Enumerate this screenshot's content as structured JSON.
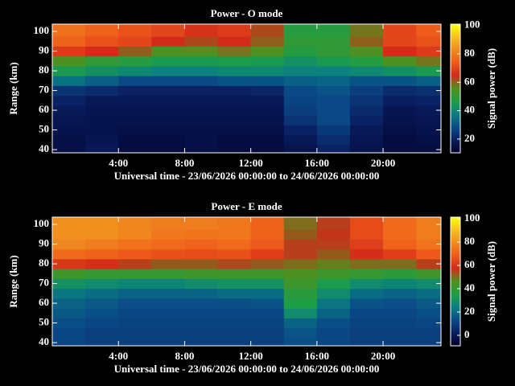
{
  "chart_data": [
    {
      "type": "heatmap",
      "title": "Power - O mode",
      "x_label": "Universal time - 23/06/2026 00:00:00 to 24/06/2026 00:00:00",
      "y_label": "Range (km)",
      "colorbar_label": "Signal power (dB)",
      "x": [
        1,
        3,
        5,
        7,
        9,
        11,
        13,
        15,
        17,
        19,
        21,
        23
      ],
      "y": [
        40,
        45,
        50,
        55,
        60,
        65,
        70,
        75,
        80,
        85,
        90,
        95,
        100,
        105
      ],
      "z": [
        [
          15,
          18,
          14,
          14,
          15,
          14,
          14,
          16,
          20,
          16,
          14,
          14
        ],
        [
          15,
          17,
          14,
          14,
          15,
          14,
          14,
          18,
          22,
          17,
          14,
          15
        ],
        [
          16,
          16,
          15,
          15,
          15,
          15,
          15,
          20,
          25,
          18,
          15,
          16
        ],
        [
          17,
          16,
          16,
          16,
          16,
          16,
          16,
          24,
          28,
          20,
          16,
          17
        ],
        [
          18,
          17,
          17,
          17,
          17,
          17,
          17,
          26,
          28,
          22,
          17,
          18
        ],
        [
          20,
          18,
          18,
          18,
          18,
          18,
          18,
          27,
          28,
          24,
          19,
          20
        ],
        [
          24,
          22,
          20,
          20,
          20,
          20,
          21,
          28,
          30,
          26,
          22,
          23
        ],
        [
          35,
          32,
          28,
          28,
          28,
          30,
          30,
          32,
          33,
          30,
          30,
          32
        ],
        [
          45,
          42,
          40,
          38,
          38,
          40,
          40,
          38,
          38,
          40,
          42,
          45
        ],
        [
          55,
          50,
          48,
          45,
          45,
          46,
          45,
          42,
          45,
          48,
          55,
          58
        ],
        [
          68,
          65,
          60,
          55,
          55,
          58,
          55,
          48,
          50,
          55,
          65,
          68
        ],
        [
          75,
          72,
          70,
          65,
          62,
          65,
          60,
          50,
          50,
          60,
          70,
          72
        ],
        [
          78,
          75,
          72,
          70,
          66,
          68,
          62,
          48,
          48,
          58,
          70,
          74
        ],
        [
          78,
          75,
          72,
          70,
          66,
          68,
          62,
          48,
          48,
          58,
          70,
          74
        ]
      ],
      "xlim": [
        0,
        23.5
      ],
      "ylim": [
        38.4,
        103.7
      ],
      "xticks": [
        {
          "value": 4,
          "label": "4:00"
        },
        {
          "value": 8,
          "label": "8:00"
        },
        {
          "value": 12,
          "label": "12:00"
        },
        {
          "value": 16,
          "label": "16:00"
        },
        {
          "value": 20,
          "label": "20:00"
        }
      ],
      "yticks": [
        40,
        50,
        60,
        70,
        80,
        90,
        100
      ],
      "clim": [
        10.3,
        101
      ],
      "cticks": [
        20,
        40,
        60,
        80,
        100
      ],
      "colormap": [
        "#00002a",
        "#0a1e60",
        "#0a4a88",
        "#0a8080",
        "#1e9e46",
        "#50901e",
        "#d22a1a",
        "#ee5a1a",
        "#f08c1e",
        "#f8c020",
        "#ffff00"
      ]
    },
    {
      "type": "heatmap",
      "title": "Power - E mode",
      "x_label": "Universal time - 23/06/2026 00:00:00 to 24/06/2026 00:00:00",
      "y_label": "Range (km)",
      "colorbar_label": "Signal power (dB)",
      "x": [
        1,
        3,
        5,
        7,
        9,
        11,
        13,
        15,
        17,
        19,
        21,
        23
      ],
      "y": [
        40,
        45,
        50,
        55,
        60,
        65,
        70,
        75,
        80,
        85,
        90,
        95,
        100,
        105
      ],
      "z": [
        [
          12,
          10,
          10,
          10,
          10,
          10,
          10,
          14,
          12,
          10,
          10,
          10
        ],
        [
          12,
          10,
          10,
          10,
          10,
          10,
          10,
          15,
          12,
          10,
          10,
          10
        ],
        [
          14,
          12,
          11,
          11,
          11,
          11,
          11,
          18,
          14,
          11,
          11,
          12
        ],
        [
          16,
          14,
          12,
          12,
          12,
          12,
          12,
          28,
          18,
          12,
          12,
          14
        ],
        [
          18,
          16,
          14,
          14,
          14,
          14,
          15,
          35,
          22,
          15,
          14,
          16
        ],
        [
          22,
          20,
          18,
          18,
          18,
          20,
          20,
          38,
          28,
          20,
          18,
          20
        ],
        [
          30,
          28,
          26,
          26,
          28,
          30,
          30,
          42,
          34,
          28,
          26,
          28
        ],
        [
          42,
          40,
          40,
          40,
          42,
          42,
          42,
          45,
          42,
          40,
          38,
          42
        ],
        [
          60,
          58,
          55,
          52,
          52,
          54,
          52,
          50,
          48,
          50,
          50,
          55
        ],
        [
          72,
          70,
          68,
          66,
          65,
          66,
          62,
          55,
          52,
          58,
          62,
          68
        ],
        [
          78,
          76,
          74,
          72,
          70,
          72,
          68,
          55,
          55,
          62,
          70,
          74
        ],
        [
          80,
          80,
          78,
          75,
          74,
          75,
          70,
          52,
          56,
          65,
          72,
          76
        ],
        [
          80,
          80,
          78,
          76,
          76,
          75,
          70,
          50,
          55,
          65,
          72,
          76
        ],
        [
          80,
          80,
          78,
          76,
          76,
          75,
          70,
          50,
          55,
          65,
          72,
          76
        ]
      ],
      "xlim": [
        0,
        23.5
      ],
      "ylim": [
        38.4,
        103.7
      ],
      "xticks": [
        {
          "value": 4,
          "label": "4:00"
        },
        {
          "value": 8,
          "label": "8:00"
        },
        {
          "value": 12,
          "label": "12:00"
        },
        {
          "value": 16,
          "label": "16:00"
        },
        {
          "value": 20,
          "label": "20:00"
        }
      ],
      "yticks": [
        40,
        50,
        60,
        70,
        80,
        90,
        100
      ],
      "clim": [
        -9,
        101.4
      ],
      "cticks": [
        0,
        20,
        40,
        60,
        80,
        100
      ],
      "colormap": [
        "#00002a",
        "#0a1e60",
        "#0a4a88",
        "#0a8080",
        "#1e9e46",
        "#50901e",
        "#d22a1a",
        "#ee5a1a",
        "#f08c1e",
        "#f8c020",
        "#ffff00"
      ]
    }
  ]
}
